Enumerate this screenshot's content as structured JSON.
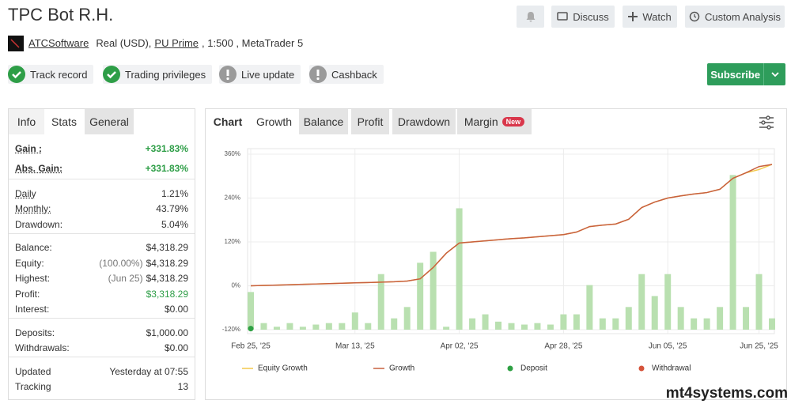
{
  "header": {
    "title": "TPC Bot R.H.",
    "buttons": [
      "Discuss",
      "Watch",
      "Custom Analysis"
    ],
    "account": {
      "owner": "ATCSoftware",
      "kind": "Real (USD),",
      "broker": "PU Prime",
      "details": ", 1:500 , MetaTrader 5"
    },
    "badges": [
      {
        "text": "Track record",
        "status": "ok"
      },
      {
        "text": "Trading privileges",
        "status": "ok"
      },
      {
        "text": "Live update",
        "status": "warn"
      },
      {
        "text": "Cashback",
        "status": "warn"
      }
    ],
    "subscribe": "Subscribe"
  },
  "left_panel": {
    "tabs": [
      "Info",
      "Stats",
      "General"
    ],
    "groups": [
      [
        {
          "label": "Gain :",
          "value": "+331.83%",
          "underline": true,
          "color": "#2e9e47"
        },
        {
          "label": "Abs. Gain:",
          "value": "+331.83%",
          "underline": true,
          "color": "#2e9e47"
        }
      ],
      [
        {
          "label": "Daily",
          "value": "1.21%",
          "underline": true
        },
        {
          "label": "Monthly:",
          "value": "43.79%",
          "underline": true
        },
        {
          "label": "Drawdown:",
          "value": "5.04%"
        }
      ],
      [
        {
          "label": "Balance:",
          "value": "$4,318.29"
        },
        {
          "label": "Equity:",
          "note": "(100.00%)",
          "value": "$4,318.29"
        },
        {
          "label": "Highest:",
          "note": "(Jun 25)",
          "value": "$4,318.29"
        },
        {
          "label": "Profit:",
          "value": "$3,318.29",
          "color": "#2e9e47"
        },
        {
          "label": "Interest:",
          "value": "$0.00"
        }
      ],
      [
        {
          "label": "Deposits:",
          "value": "$1,000.00"
        },
        {
          "label": "Withdrawals:",
          "value": "$0.00"
        }
      ],
      [
        {
          "label": "Updated",
          "value": "Yesterday at 07:55"
        },
        {
          "label": "Tracking",
          "value": "13"
        }
      ]
    ]
  },
  "right_panel": {
    "tabs": [
      "Chart",
      "Growth",
      "Balance",
      "Profit",
      "Drawdown",
      "Margin"
    ],
    "new_badge": "New"
  },
  "chart_data": {
    "type": "bar",
    "grid": true,
    "categories": [
      "Feb 25, '25",
      null,
      null,
      null,
      null,
      null,
      null,
      null,
      "Mar 13, '25",
      null,
      null,
      null,
      null,
      null,
      null,
      null,
      "Apr 02, '25",
      null,
      null,
      null,
      null,
      null,
      null,
      null,
      "Apr 28, '25",
      null,
      null,
      null,
      null,
      null,
      null,
      null,
      "Jun 05, '25",
      null,
      null,
      null,
      null,
      null,
      null,
      "Jun 25, '25",
      null
    ],
    "ylim": [
      -120,
      360
    ],
    "yticks": [
      {
        "value": 360,
        "label": "360%"
      },
      {
        "value": 240,
        "label": "240%"
      },
      {
        "value": 120,
        "label": "120%"
      },
      {
        "value": 0,
        "label": "0%"
      },
      {
        "value": -120,
        "label": "-120%"
      }
    ],
    "bars": {
      "color": "#b9e0b0",
      "values": [
        -17,
        -102,
        -112,
        -102,
        -112,
        -106,
        -102,
        -102,
        -73,
        -102,
        32,
        -89,
        -58,
        63,
        93,
        -112,
        212,
        -89,
        -78,
        -98,
        -102,
        -106,
        -102,
        -106,
        -78,
        -78,
        2,
        -89,
        -89,
        -58,
        32,
        -28,
        32,
        -58,
        -89,
        -89,
        -58,
        303,
        -58,
        32,
        -89
      ]
    },
    "series": [
      {
        "name": "Equity Growth",
        "type": "line",
        "color": "#f2c94c",
        "values": [
          0,
          1,
          2,
          3,
          4,
          5,
          6,
          7,
          8,
          9,
          10,
          11,
          13,
          19,
          50,
          89,
          117,
          120,
          123,
          126,
          129,
          131,
          134,
          137,
          140,
          147,
          162,
          166,
          169,
          182,
          214,
          229,
          240,
          246,
          251,
          255,
          264,
          294,
          309,
          318,
          332
        ]
      },
      {
        "name": "Growth",
        "type": "line",
        "color": "#c8603f",
        "values": [
          0,
          1,
          2,
          3,
          4,
          5,
          6,
          7,
          8,
          9,
          10,
          11,
          13,
          19,
          50,
          89,
          117,
          120,
          123,
          126,
          129,
          131,
          134,
          137,
          140,
          147,
          162,
          166,
          169,
          182,
          214,
          229,
          240,
          246,
          251,
          255,
          264,
          294,
          309,
          326,
          332
        ]
      },
      {
        "name": "Deposit",
        "type": "scatter",
        "color": "#2ea043",
        "values": [
          -117,
          null,
          null,
          null,
          null,
          null,
          null,
          null,
          null,
          null,
          null,
          null,
          null,
          null,
          null,
          null,
          null,
          null,
          null,
          null,
          null,
          null,
          null,
          null,
          null,
          null,
          null,
          null,
          null,
          null,
          null,
          null,
          null,
          null,
          null,
          null,
          null,
          null,
          null,
          null,
          null
        ]
      },
      {
        "name": "Withdrawal",
        "type": "scatter",
        "color": "#d5533a",
        "values": [
          null,
          null,
          null,
          null,
          null,
          null,
          null,
          null,
          null,
          null,
          null,
          null,
          null,
          null,
          null,
          null,
          null,
          null,
          null,
          null,
          null,
          null,
          null,
          null,
          null,
          null,
          null,
          null,
          null,
          null,
          null,
          null,
          null,
          null,
          null,
          null,
          null,
          null,
          null,
          null,
          null
        ]
      }
    ]
  },
  "watermark": "mt4systems.com"
}
